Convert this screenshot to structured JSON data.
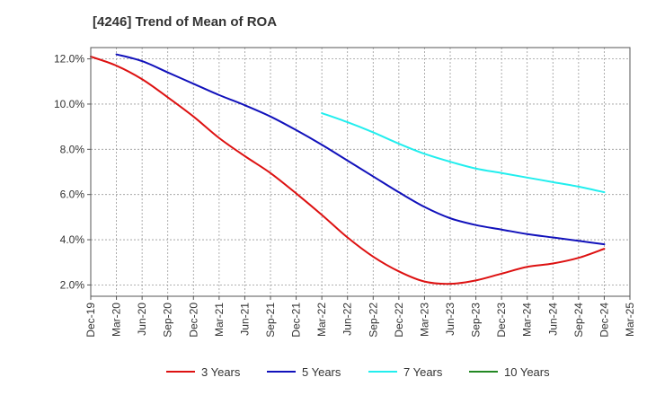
{
  "chart_data": {
    "type": "line",
    "title": "[4246]  Trend of Mean of ROA",
    "xlabel": "",
    "ylabel": "",
    "x": [
      "Dec-19",
      "Mar-20",
      "Jun-20",
      "Sep-20",
      "Dec-20",
      "Mar-21",
      "Jun-21",
      "Sep-21",
      "Dec-21",
      "Mar-22",
      "Jun-22",
      "Sep-22",
      "Dec-22",
      "Mar-23",
      "Jun-23",
      "Sep-23",
      "Dec-23",
      "Mar-24",
      "Jun-24",
      "Sep-24",
      "Dec-24",
      "Mar-25"
    ],
    "ylim": [
      1.5,
      12.5
    ],
    "yticks": [
      2.0,
      4.0,
      6.0,
      8.0,
      10.0,
      12.0
    ],
    "ytick_labels": [
      "2.0%",
      "4.0%",
      "6.0%",
      "8.0%",
      "10.0%",
      "12.0%"
    ],
    "grid": true,
    "legend_position": "bottom",
    "series": [
      {
        "name": "3 Years",
        "color": "#dd1111",
        "values": [
          12.1,
          11.7,
          11.1,
          10.3,
          9.45,
          8.5,
          7.7,
          6.95,
          6.05,
          5.1,
          4.1,
          3.25,
          2.6,
          2.15,
          2.05,
          2.2,
          2.5,
          2.8,
          2.95,
          3.2,
          3.6,
          null
        ]
      },
      {
        "name": "5 Years",
        "color": "#1111bb",
        "values": [
          null,
          12.2,
          11.9,
          11.4,
          10.9,
          10.4,
          9.95,
          9.45,
          8.85,
          8.2,
          7.5,
          6.8,
          6.1,
          5.45,
          4.95,
          4.65,
          4.45,
          4.25,
          4.1,
          3.95,
          3.8,
          null
        ]
      },
      {
        "name": "7 Years",
        "color": "#22eeee",
        "values": [
          null,
          null,
          null,
          null,
          null,
          null,
          null,
          null,
          null,
          9.6,
          9.2,
          8.75,
          8.25,
          7.8,
          7.45,
          7.15,
          6.95,
          6.75,
          6.55,
          6.35,
          6.1,
          null
        ]
      },
      {
        "name": "10 Years",
        "color": "#228822",
        "values": [
          null,
          null,
          null,
          null,
          null,
          null,
          null,
          null,
          null,
          null,
          null,
          null,
          null,
          null,
          null,
          null,
          null,
          null,
          null,
          null,
          null,
          null
        ]
      }
    ]
  }
}
